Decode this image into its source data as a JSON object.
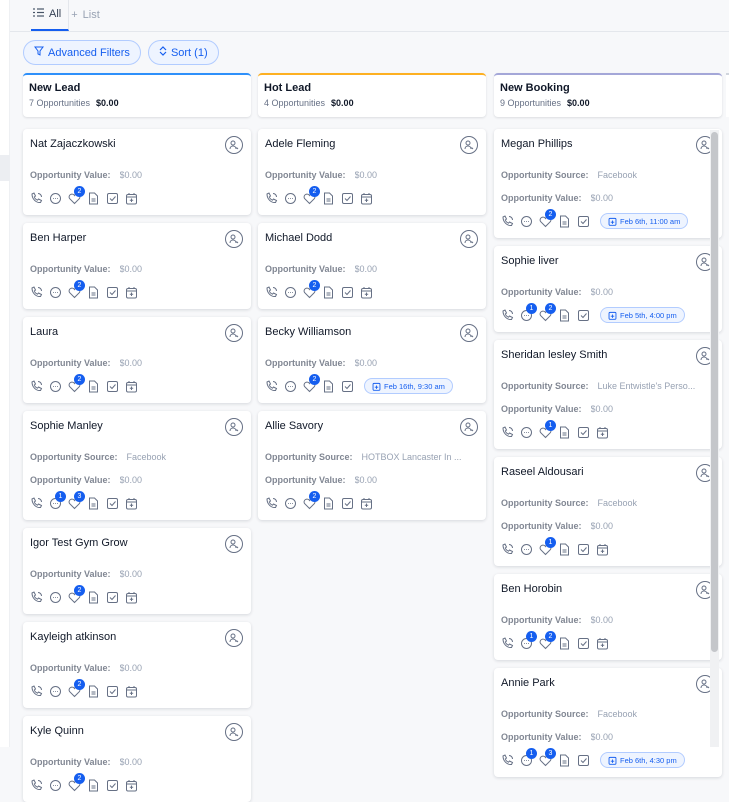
{
  "tabs": [
    {
      "label": "All",
      "icon": "list-icon",
      "active": true
    },
    {
      "label": "List",
      "icon": "plus-icon",
      "active": false
    }
  ],
  "filters": {
    "advanced_label": "Advanced Filters",
    "sort_label": "Sort (1)"
  },
  "labels": {
    "source": "Opportunity Source:",
    "value": "Opportunity Value:"
  },
  "colors": {
    "accent": "#155eef",
    "new_lead": "#2e90fa",
    "hot_lead": "#fdb022",
    "new_booking": "#a4a7d8"
  },
  "columns": [
    {
      "title": "New Lead",
      "count": "7 Opportunities",
      "total": "$0.00",
      "color": "#2e90fa",
      "cards": [
        {
          "name": "Nat Zajaczkowski",
          "value": "$0.00",
          "heart": "2"
        },
        {
          "name": "Ben Harper",
          "value": "$0.00",
          "heart": "2"
        },
        {
          "name": "Laura",
          "value": "$0.00",
          "heart": "2"
        },
        {
          "name": "Sophie Manley",
          "source": "Facebook",
          "value": "$0.00",
          "chat": "1",
          "heart": "3"
        },
        {
          "name": "Igor Test Gym Grow",
          "value": "$0.00",
          "heart": "2"
        },
        {
          "name": "Kayleigh atkinson",
          "value": "$0.00",
          "heart": "2"
        },
        {
          "name": "Kyle Quinn",
          "value": "$0.00",
          "heart": "2"
        }
      ]
    },
    {
      "title": "Hot Lead",
      "count": "4 Opportunities",
      "total": "$0.00",
      "color": "#fdb022",
      "cards": [
        {
          "name": "Adele Fleming",
          "value": "$0.00",
          "heart": "2"
        },
        {
          "name": "Michael Dodd",
          "value": "$0.00",
          "heart": "2"
        },
        {
          "name": "Becky Williamson",
          "value": "$0.00",
          "heart": "2",
          "date": "Feb 16th, 9:30 am"
        },
        {
          "name": "Allie Savory",
          "source": "HOTBOX Lancaster In ...",
          "value": "$0.00",
          "heart": "2"
        }
      ]
    },
    {
      "title": "New Booking",
      "count": "9 Opportunities",
      "total": "$0.00",
      "color": "#a4a7d8",
      "cards": [
        {
          "name": "Megan Phillips",
          "source": "Facebook",
          "value": "$0.00",
          "heart": "2",
          "date": "Feb 6th, 11:00 am"
        },
        {
          "name": "Sophie liver",
          "value": "$0.00",
          "chat": "1",
          "heart": "2",
          "date": "Feb 5th, 4:00 pm"
        },
        {
          "name": "Sheridan lesley Smith",
          "source": "Luke Entwistle's Perso...",
          "value": "$0.00",
          "heart": "1"
        },
        {
          "name": "Raseel Aldousari",
          "source": "Facebook",
          "value": "$0.00",
          "heart": "1"
        },
        {
          "name": "Ben Horobin",
          "value": "$0.00",
          "chat": "1",
          "heart": "2"
        },
        {
          "name": "Annie Park",
          "source": "Facebook",
          "value": "$0.00",
          "chat": "1",
          "heart": "3",
          "date": "Feb 6th, 4:30 pm"
        }
      ]
    }
  ]
}
